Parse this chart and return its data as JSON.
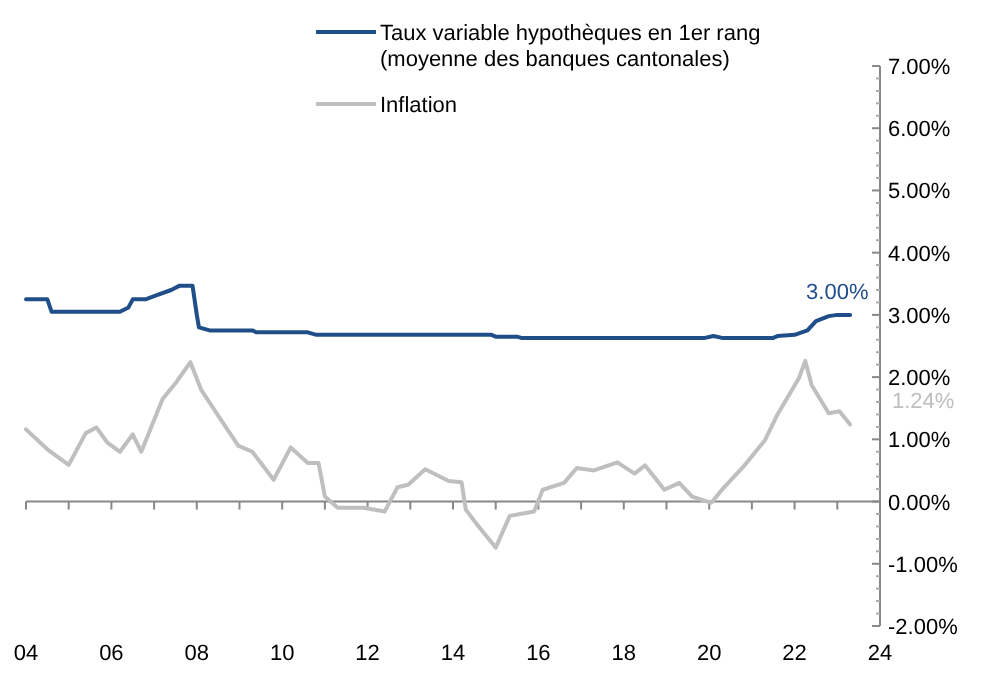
{
  "chart_data": {
    "type": "line",
    "legend": "top",
    "xlim": [
      2004,
      2024
    ],
    "xticks": [
      {
        "value": 2004,
        "label": "04"
      },
      {
        "value": 2005,
        "label": null
      },
      {
        "value": 2006,
        "label": "06"
      },
      {
        "value": 2007,
        "label": null
      },
      {
        "value": 2008,
        "label": "08"
      },
      {
        "value": 2009,
        "label": null
      },
      {
        "value": 2010,
        "label": "10"
      },
      {
        "value": 2011,
        "label": null
      },
      {
        "value": 2012,
        "label": "12"
      },
      {
        "value": 2013,
        "label": null
      },
      {
        "value": 2014,
        "label": "14"
      },
      {
        "value": 2015,
        "label": null
      },
      {
        "value": 2016,
        "label": "16"
      },
      {
        "value": 2017,
        "label": null
      },
      {
        "value": 2018,
        "label": "18"
      },
      {
        "value": 2019,
        "label": null
      },
      {
        "value": 2020,
        "label": "20"
      },
      {
        "value": 2021,
        "label": null
      },
      {
        "value": 2022,
        "label": "22"
      },
      {
        "value": 2023,
        "label": null
      },
      {
        "value": 2024,
        "label": "24"
      }
    ],
    "ylim": [
      -2,
      7
    ],
    "yticks": [
      {
        "value": -2,
        "label": "-2.00%"
      },
      {
        "value": -1,
        "label": "-1.00%"
      },
      {
        "value": 0,
        "label": "0.00%"
      },
      {
        "value": 1,
        "label": "1.00%"
      },
      {
        "value": 2,
        "label": "2.00%"
      },
      {
        "value": 3,
        "label": "3.00%"
      },
      {
        "value": 4,
        "label": "4.00%"
      },
      {
        "value": 5,
        "label": "5.00%"
      },
      {
        "value": 6,
        "label": "6.00%"
      },
      {
        "value": 7,
        "label": "7.00%"
      }
    ],
    "series": [
      {
        "name": "Taux variable hypothèques en 1er rang\n(moyenne des banques cantonales)",
        "color": "#1f4e89",
        "x": [
          2004.0,
          2004.5,
          2004.6,
          2006.2,
          2006.4,
          2006.5,
          2006.8,
          2007.0,
          2007.4,
          2007.6,
          2007.9,
          2008.0,
          2008.05,
          2008.3,
          2009.3,
          2009.4,
          2010.6,
          2010.8,
          2014.9,
          2015.0,
          2015.5,
          2015.6,
          2019.9,
          2020.1,
          2020.3,
          2021.5,
          2021.6,
          2022.0,
          2022.3,
          2022.5,
          2022.8,
          2023.0,
          2023.3
        ],
        "values": [
          3.25,
          3.25,
          3.05,
          3.05,
          3.12,
          3.25,
          3.25,
          3.3,
          3.4,
          3.47,
          3.47,
          3.0,
          2.8,
          2.75,
          2.75,
          2.72,
          2.72,
          2.68,
          2.68,
          2.65,
          2.65,
          2.63,
          2.63,
          2.66,
          2.63,
          2.63,
          2.66,
          2.68,
          2.75,
          2.9,
          2.98,
          3.0,
          3.0
        ]
      },
      {
        "name": "Inflation",
        "color": "#bfbfbf",
        "x": [
          2004.0,
          2004.5,
          2005.0,
          2005.4,
          2005.65,
          2005.9,
          2006.2,
          2006.5,
          2006.7,
          2007.2,
          2007.5,
          2007.85,
          2008.1,
          2008.5,
          2008.97,
          2009.3,
          2009.8,
          2010.2,
          2010.6,
          2010.85,
          2011.0,
          2011.3,
          2011.9,
          2012.4,
          2012.7,
          2012.95,
          2013.35,
          2013.9,
          2014.2,
          2014.3,
          2014.6,
          2015.0,
          2015.33,
          2015.9,
          2016.1,
          2016.6,
          2016.9,
          2017.3,
          2017.85,
          2018.25,
          2018.5,
          2018.95,
          2019.3,
          2019.6,
          2020.05,
          2020.3,
          2020.8,
          2021.3,
          2021.6,
          2022.1,
          2022.25,
          2022.4,
          2022.8,
          2023.05,
          2023.3
        ],
        "values": [
          1.16,
          0.84,
          0.59,
          1.1,
          1.19,
          0.95,
          0.8,
          1.08,
          0.8,
          1.65,
          1.9,
          2.24,
          1.8,
          1.38,
          0.9,
          0.8,
          0.35,
          0.87,
          0.62,
          0.62,
          0.08,
          -0.1,
          -0.1,
          -0.16,
          0.23,
          0.27,
          0.52,
          0.33,
          0.31,
          -0.13,
          -0.4,
          -0.74,
          -0.23,
          -0.16,
          0.19,
          0.3,
          0.54,
          0.5,
          0.63,
          0.45,
          0.58,
          0.19,
          0.3,
          0.08,
          -0.02,
          0.19,
          0.56,
          0.98,
          1.4,
          1.98,
          2.26,
          1.87,
          1.42,
          1.45,
          1.24
        ]
      }
    ],
    "annotations": [
      {
        "text": "3.00%",
        "x": 2023.0,
        "y": 3.0
      },
      {
        "text": "1.24%",
        "x": 2023.3,
        "y": 1.24
      }
    ]
  }
}
